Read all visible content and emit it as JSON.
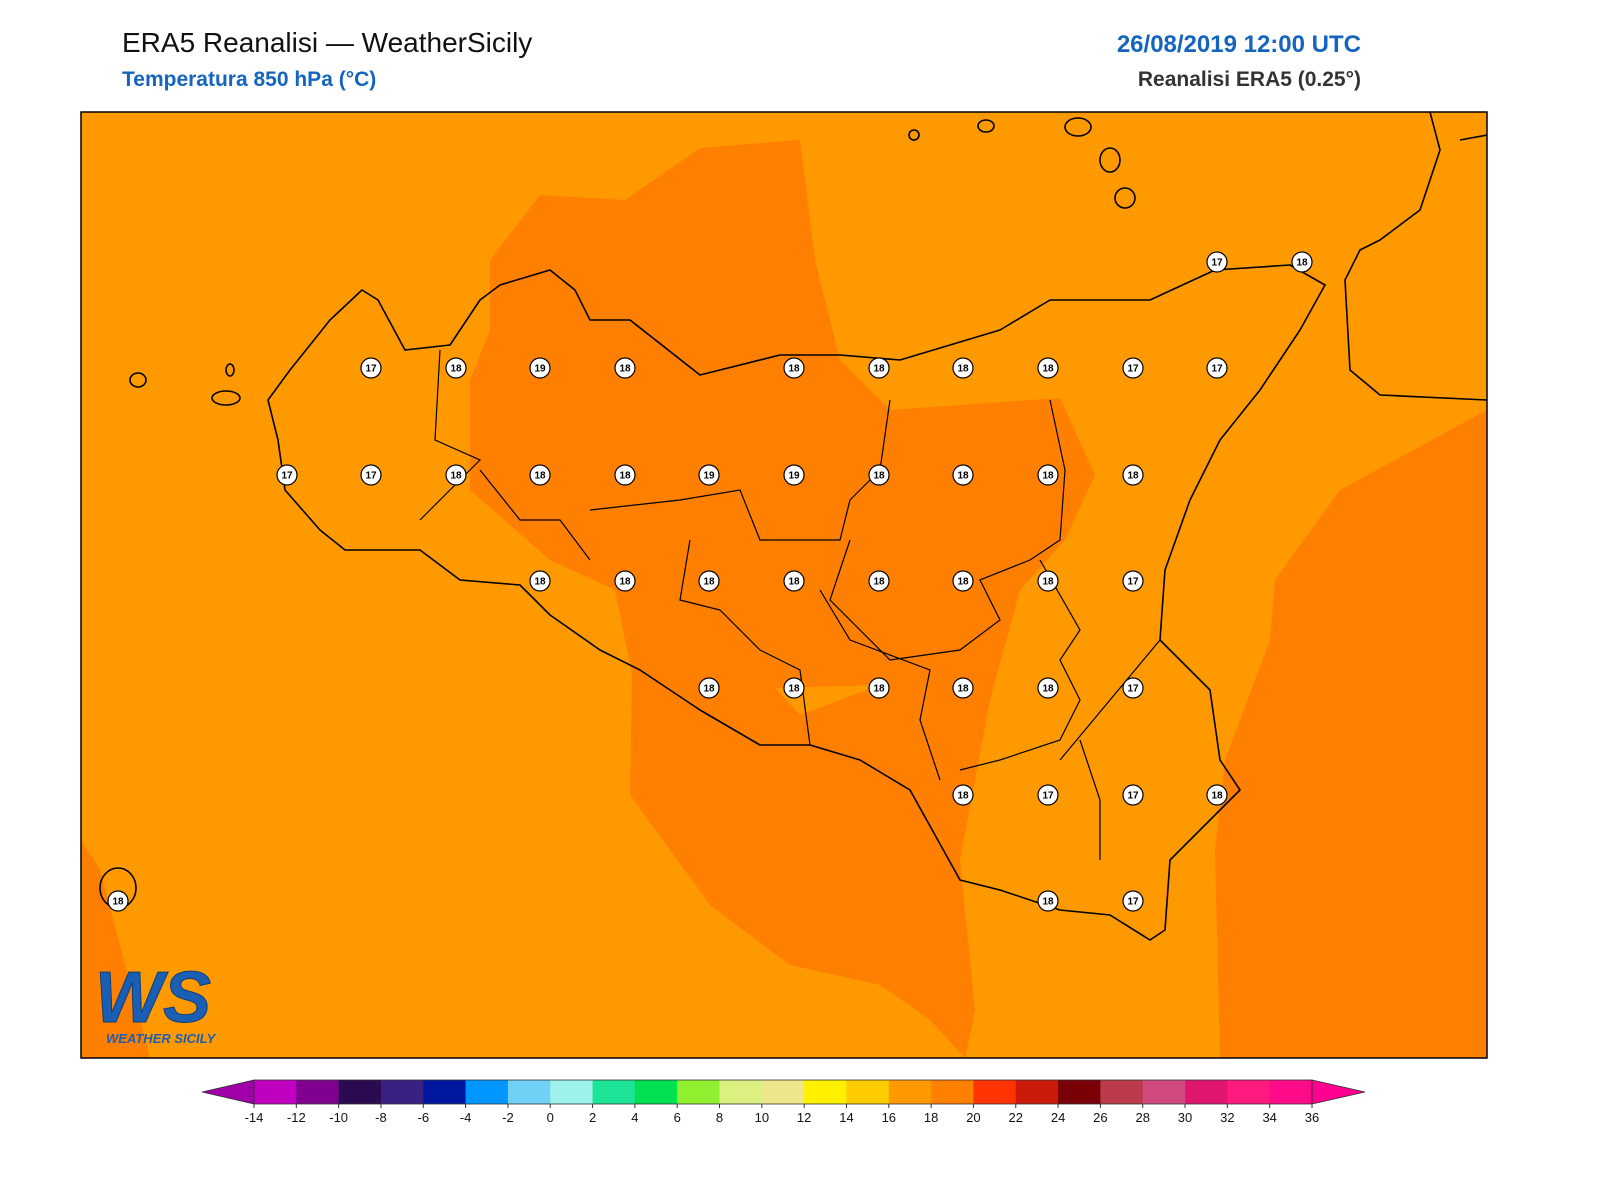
{
  "header": {
    "title": "ERA5 Reanalisi — WeatherSicily",
    "subtitle": "Temperatura 850 hPa (°C)",
    "date": "26/08/2019 12:00 UTC",
    "source": "Reanalisi ERA5 (0.25°)"
  },
  "stations": {
    "values": [
      17,
      18,
      17,
      18,
      19,
      18,
      18,
      18,
      18,
      18,
      17,
      17,
      17,
      17,
      18,
      18,
      18,
      19,
      19,
      18,
      18,
      18,
      18,
      18,
      18,
      18,
      18,
      18,
      18,
      18,
      17,
      18,
      18,
      18,
      18,
      18,
      17,
      18,
      17,
      17,
      18,
      18,
      18,
      17
    ]
  },
  "colorbar": {
    "ticks": [
      -14,
      -12,
      -10,
      -8,
      -6,
      -4,
      -2,
      0,
      2,
      4,
      6,
      8,
      10,
      12,
      14,
      16,
      18,
      20,
      22,
      24,
      26,
      28,
      30,
      32,
      34,
      36
    ],
    "colors": [
      "#c000c0",
      "#800090",
      "#2a0a50",
      "#3a2080",
      "#0018a0",
      "#0096ff",
      "#70d0f5",
      "#9ef2ec",
      "#1de396",
      "#00e050",
      "#90f030",
      "#dcf082",
      "#eee68a",
      "#fff000",
      "#ffcc00",
      "#ff9900",
      "#ff7f00",
      "#ff3300",
      "#cc1a0a",
      "#7a0008",
      "#bb3a4c",
      "#d04a80",
      "#e0156e",
      "#ff1a80",
      "#ff0a88"
    ],
    "extend_colors": [
      "#a000a8",
      "#ff0090"
    ]
  },
  "logo": {
    "mark": "WS",
    "text": "WEATHER SICILY"
  }
}
